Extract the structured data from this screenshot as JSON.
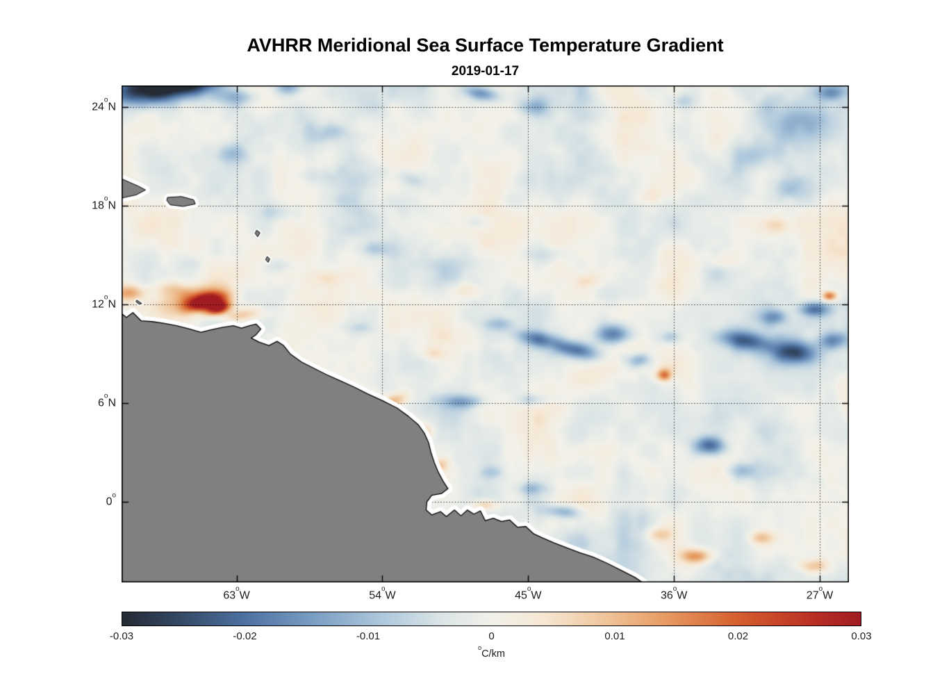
{
  "title": "AVHRR Meridional Sea Surface Temperature Gradient",
  "subtitle": "2019-01-17",
  "chart_data": {
    "type": "heatmap",
    "title": "AVHRR Meridional Sea Surface Temperature Gradient",
    "subtitle": "2019-01-17",
    "projection": {
      "lon_range": [
        -70.1,
        -25.2
      ],
      "lat_range": [
        -4.9,
        25.3
      ]
    },
    "grid": {
      "style": "dotted",
      "color": "rgba(0,0,0,0.8)"
    },
    "deg_char": "o",
    "x_ticks": [
      {
        "lon": -63,
        "value": "63",
        "hemi": "W"
      },
      {
        "lon": -54,
        "value": "54",
        "hemi": "W"
      },
      {
        "lon": -45,
        "value": "45",
        "hemi": "W"
      },
      {
        "lon": -36,
        "value": "36",
        "hemi": "W"
      },
      {
        "lon": -27,
        "value": "27",
        "hemi": "W"
      }
    ],
    "y_ticks": [
      {
        "lat": 24,
        "value": "24",
        "hemi": "N"
      },
      {
        "lat": 18,
        "value": "18",
        "hemi": "N"
      },
      {
        "lat": 12,
        "value": "12",
        "hemi": "N"
      },
      {
        "lat": 6,
        "value": "6",
        "hemi": "N"
      },
      {
        "lat": 0,
        "value": "0",
        "hemi": ""
      }
    ],
    "colorbar": {
      "range": [
        -0.03,
        0.03
      ],
      "unit": "C/km",
      "ticks": [
        {
          "v": -0.03,
          "label": "-0.03"
        },
        {
          "v": -0.02,
          "label": "-0.02"
        },
        {
          "v": -0.01,
          "label": "-0.01"
        },
        {
          "v": 0,
          "label": "0"
        },
        {
          "v": 0.01,
          "label": "0.01"
        },
        {
          "v": 0.02,
          "label": "0.02"
        },
        {
          "v": 0.03,
          "label": "0.03"
        }
      ]
    },
    "colormap": [
      [
        -0.03,
        "#252a33"
      ],
      [
        -0.026,
        "#31445e"
      ],
      [
        -0.02,
        "#4d72a1"
      ],
      [
        -0.014,
        "#7ea1c5"
      ],
      [
        -0.009,
        "#adc7dc"
      ],
      [
        -0.004,
        "#dbe5e6"
      ],
      [
        0.0,
        "#f2f1ea"
      ],
      [
        0.004,
        "#f6e8d5"
      ],
      [
        0.009,
        "#f0c79e"
      ],
      [
        0.014,
        "#e79c63"
      ],
      [
        0.02,
        "#d55f2e"
      ],
      [
        0.026,
        "#bb3024"
      ],
      [
        0.03,
        "#a01c22"
      ]
    ],
    "noise": {
      "seed": 7,
      "bias": -0.0012,
      "octaves": [
        {
          "scale": 22,
          "amp": 0.0042
        },
        {
          "scale": 11,
          "amp": 0.0024
        },
        {
          "scale": 5,
          "amp": 0.0012
        }
      ]
    },
    "feature_format": [
      "lon",
      "lat",
      "rx_deg",
      "ry_deg",
      "rot_deg",
      "value_C_per_km"
    ],
    "features": [
      [
        -68.3,
        25.1,
        2.2,
        0.9,
        -8,
        -0.03
      ],
      [
        -65.6,
        25.5,
        2.0,
        0.8,
        -5,
        -0.022
      ],
      [
        -63.0,
        24.6,
        1.2,
        0.5,
        0,
        -0.01
      ],
      [
        -59.8,
        25.2,
        0.9,
        0.5,
        0,
        -0.014
      ],
      [
        -47.9,
        24.8,
        1.1,
        0.45,
        10,
        -0.016
      ],
      [
        -44.5,
        24.0,
        1.1,
        0.5,
        0,
        -0.008
      ],
      [
        -35.5,
        24.3,
        0.9,
        0.5,
        0,
        -0.007
      ],
      [
        -28.0,
        23.3,
        2.2,
        1.2,
        0,
        -0.009
      ],
      [
        -26.3,
        24.9,
        0.9,
        0.5,
        0,
        -0.013
      ],
      [
        -31.0,
        21.0,
        1.4,
        0.8,
        0,
        -0.008
      ],
      [
        -29.0,
        19.0,
        1.2,
        0.7,
        0,
        -0.007
      ],
      [
        -63.5,
        21.2,
        1.2,
        0.6,
        0,
        -0.007
      ],
      [
        -58.5,
        19.8,
        1.1,
        0.55,
        0,
        -0.006
      ],
      [
        -56.8,
        22.4,
        1.3,
        0.6,
        0,
        -0.007
      ],
      [
        -52.3,
        19.6,
        1.1,
        0.5,
        15,
        -0.007
      ],
      [
        -60.3,
        17.6,
        1.0,
        0.5,
        0,
        -0.006
      ],
      [
        -48.5,
        17.0,
        1.0,
        0.5,
        0,
        -0.006
      ],
      [
        -54.5,
        15.4,
        0.9,
        0.45,
        0,
        -0.007
      ],
      [
        -44.0,
        15.0,
        1.0,
        0.5,
        0,
        -0.005
      ],
      [
        -60.5,
        14.3,
        1.0,
        0.5,
        0,
        -0.006
      ],
      [
        -64.9,
        12.15,
        1.15,
        0.45,
        -12,
        0.034
      ],
      [
        -64.1,
        11.75,
        0.7,
        0.35,
        -15,
        0.03
      ],
      [
        -65.3,
        12.4,
        2.1,
        0.85,
        -10,
        0.016
      ],
      [
        -62.6,
        11.35,
        1.2,
        0.4,
        -8,
        0.011
      ],
      [
        -69.6,
        12.7,
        0.9,
        0.45,
        0,
        0.013
      ],
      [
        -67.0,
        12.9,
        1.2,
        0.5,
        0,
        0.007
      ],
      [
        -44.5,
        9.9,
        1.3,
        0.45,
        12,
        -0.013
      ],
      [
        -42.0,
        9.2,
        1.5,
        0.55,
        12,
        -0.02
      ],
      [
        -39.7,
        10.2,
        1.1,
        0.65,
        0,
        -0.018
      ],
      [
        -38.2,
        8.6,
        0.8,
        0.45,
        0,
        -0.012
      ],
      [
        -46.8,
        10.8,
        0.9,
        0.4,
        0,
        -0.008
      ],
      [
        -36.3,
        10.0,
        0.7,
        0.4,
        0,
        -0.008
      ],
      [
        -36.6,
        7.7,
        0.45,
        0.35,
        0,
        0.018
      ],
      [
        -31.6,
        9.8,
        1.5,
        0.6,
        8,
        -0.019
      ],
      [
        -28.6,
        9.1,
        1.4,
        0.7,
        0,
        -0.022
      ],
      [
        -26.2,
        9.8,
        0.9,
        0.5,
        0,
        -0.014
      ],
      [
        -29.8,
        11.2,
        0.9,
        0.5,
        0,
        -0.012
      ],
      [
        -27.3,
        11.7,
        0.9,
        0.45,
        0,
        -0.017
      ],
      [
        -26.4,
        12.5,
        0.45,
        0.3,
        0,
        0.02
      ],
      [
        -33.8,
        3.4,
        0.95,
        0.55,
        0,
        -0.02
      ],
      [
        -31.8,
        1.9,
        0.9,
        0.5,
        0,
        -0.009
      ],
      [
        -42.8,
        -0.6,
        1.1,
        0.4,
        5,
        -0.012
      ],
      [
        -44.8,
        0.8,
        0.9,
        0.4,
        0,
        -0.008
      ],
      [
        -47.3,
        1.8,
        0.8,
        0.4,
        0,
        -0.007
      ],
      [
        -49.0,
        6.1,
        1.2,
        0.4,
        0,
        -0.01
      ],
      [
        -44.8,
        6.2,
        1.0,
        0.4,
        0,
        -0.009
      ],
      [
        -53.6,
        5.9,
        1.1,
        0.4,
        -28,
        0.012
      ],
      [
        -51.6,
        4.0,
        0.7,
        0.45,
        -40,
        0.013
      ],
      [
        -50.6,
        2.2,
        0.6,
        0.4,
        0,
        0.01
      ],
      [
        -47.6,
        -0.2,
        0.8,
        0.35,
        0,
        0.011
      ],
      [
        -34.6,
        -3.3,
        0.9,
        0.45,
        0,
        0.016
      ],
      [
        -30.6,
        -2.2,
        0.8,
        0.4,
        0,
        0.01
      ],
      [
        -27.4,
        -3.9,
        0.9,
        0.45,
        0,
        0.013
      ],
      [
        -37.0,
        -2.0,
        0.8,
        0.4,
        0,
        0.008
      ],
      [
        -33.0,
        14.6,
        1.1,
        0.5,
        0,
        0.007
      ],
      [
        -29.5,
        16.8,
        1.0,
        0.5,
        0,
        0.006
      ],
      [
        -41.3,
        13.4,
        0.9,
        0.45,
        0,
        0.006
      ],
      [
        -48.9,
        12.9,
        0.9,
        0.45,
        0,
        0.006
      ],
      [
        -57.4,
        13.6,
        1.0,
        0.5,
        0,
        0.006
      ],
      [
        -37.4,
        18.6,
        0.9,
        0.5,
        0,
        0.005
      ],
      [
        -51.0,
        9.0,
        0.8,
        0.4,
        0,
        0.006
      ],
      [
        -55.3,
        10.6,
        0.9,
        0.4,
        0,
        -0.006
      ]
    ],
    "land": {
      "fill": "#808080",
      "edge": "#000000",
      "coast_buffer": "#ffffff",
      "mainland": {
        "buffer": 13,
        "pts": [
          [
            -70.3,
            11.6
          ],
          [
            -69.8,
            11.2
          ],
          [
            -69.4,
            11.5
          ],
          [
            -68.9,
            11.0
          ],
          [
            -68.2,
            10.95
          ],
          [
            -67.5,
            10.85
          ],
          [
            -66.7,
            10.7
          ],
          [
            -65.9,
            10.5
          ],
          [
            -65.2,
            10.3
          ],
          [
            -64.6,
            10.45
          ],
          [
            -63.9,
            10.6
          ],
          [
            -63.2,
            10.7
          ],
          [
            -62.7,
            10.55
          ],
          [
            -62.2,
            10.7
          ],
          [
            -61.8,
            10.8
          ],
          [
            -61.5,
            10.5
          ],
          [
            -61.8,
            10.15
          ],
          [
            -62.1,
            9.95
          ],
          [
            -61.6,
            9.7
          ],
          [
            -61.0,
            9.5
          ],
          [
            -60.5,
            9.75
          ],
          [
            -60.1,
            9.5
          ],
          [
            -59.7,
            9.0
          ],
          [
            -59.0,
            8.5
          ],
          [
            -58.3,
            8.15
          ],
          [
            -57.5,
            7.75
          ],
          [
            -56.7,
            7.4
          ],
          [
            -55.8,
            7.0
          ],
          [
            -54.9,
            6.55
          ],
          [
            -54.0,
            6.15
          ],
          [
            -53.1,
            5.7
          ],
          [
            -52.4,
            5.2
          ],
          [
            -51.8,
            4.7
          ],
          [
            -51.4,
            4.15
          ],
          [
            -51.15,
            3.6
          ],
          [
            -51.0,
            3.0
          ],
          [
            -50.8,
            2.4
          ],
          [
            -50.55,
            1.8
          ],
          [
            -50.25,
            1.25
          ],
          [
            -49.95,
            0.8
          ],
          [
            -50.35,
            0.5
          ],
          [
            -50.95,
            0.4
          ],
          [
            -51.25,
            0.0
          ],
          [
            -51.3,
            -0.5
          ],
          [
            -50.95,
            -0.8
          ],
          [
            -50.4,
            -0.6
          ],
          [
            -50.05,
            -0.9
          ],
          [
            -49.55,
            -0.5
          ],
          [
            -49.15,
            -0.85
          ],
          [
            -48.75,
            -0.5
          ],
          [
            -48.35,
            -0.75
          ],
          [
            -47.95,
            -0.55
          ],
          [
            -47.65,
            -1.15
          ],
          [
            -47.15,
            -1.0
          ],
          [
            -46.65,
            -1.2
          ],
          [
            -46.15,
            -1.1
          ],
          [
            -45.65,
            -1.55
          ],
          [
            -45.15,
            -1.5
          ],
          [
            -44.65,
            -1.95
          ],
          [
            -44.1,
            -2.2
          ],
          [
            -43.4,
            -2.5
          ],
          [
            -42.6,
            -2.8
          ],
          [
            -41.8,
            -3.1
          ],
          [
            -41.0,
            -3.35
          ],
          [
            -40.1,
            -3.75
          ],
          [
            -39.2,
            -4.2
          ],
          [
            -38.4,
            -4.6
          ],
          [
            -37.8,
            -5.0
          ],
          [
            -37.5,
            -5.5
          ],
          [
            -37.5,
            -6.5
          ],
          [
            -71.0,
            -6.5
          ],
          [
            -71.0,
            11.6
          ]
        ]
      },
      "islands": [
        {
          "name": "hispaniola-east",
          "buffer": 12,
          "pts": [
            [
              -70.6,
              19.85
            ],
            [
              -69.8,
              19.5
            ],
            [
              -69.1,
              19.2
            ],
            [
              -68.62,
              18.95
            ],
            [
              -69.2,
              18.65
            ],
            [
              -69.9,
              18.5
            ],
            [
              -70.6,
              18.3
            ]
          ]
        },
        {
          "name": "puerto-rico",
          "buffer": 10,
          "pts": [
            [
              -67.25,
              18.5
            ],
            [
              -66.4,
              18.55
            ],
            [
              -65.65,
              18.35
            ],
            [
              -65.55,
              18.1
            ],
            [
              -66.3,
              17.95
            ],
            [
              -67.1,
              18.05
            ],
            [
              -67.3,
              18.3
            ]
          ]
        },
        {
          "name": "guadeloupe",
          "buffer": 5,
          "pts": [
            [
              -61.75,
              16.5
            ],
            [
              -61.55,
              16.35
            ],
            [
              -61.7,
              16.1
            ],
            [
              -61.85,
              16.3
            ]
          ]
        },
        {
          "name": "martinique",
          "buffer": 5,
          "pts": [
            [
              -61.1,
              14.9
            ],
            [
              -60.95,
              14.75
            ],
            [
              -61.05,
              14.55
            ],
            [
              -61.2,
              14.7
            ]
          ]
        },
        {
          "name": "curacao",
          "buffer": 5,
          "pts": [
            [
              -69.15,
              12.25
            ],
            [
              -68.85,
              12.05
            ],
            [
              -69.0,
              12.0
            ],
            [
              -69.2,
              12.15
            ]
          ]
        }
      ]
    }
  }
}
